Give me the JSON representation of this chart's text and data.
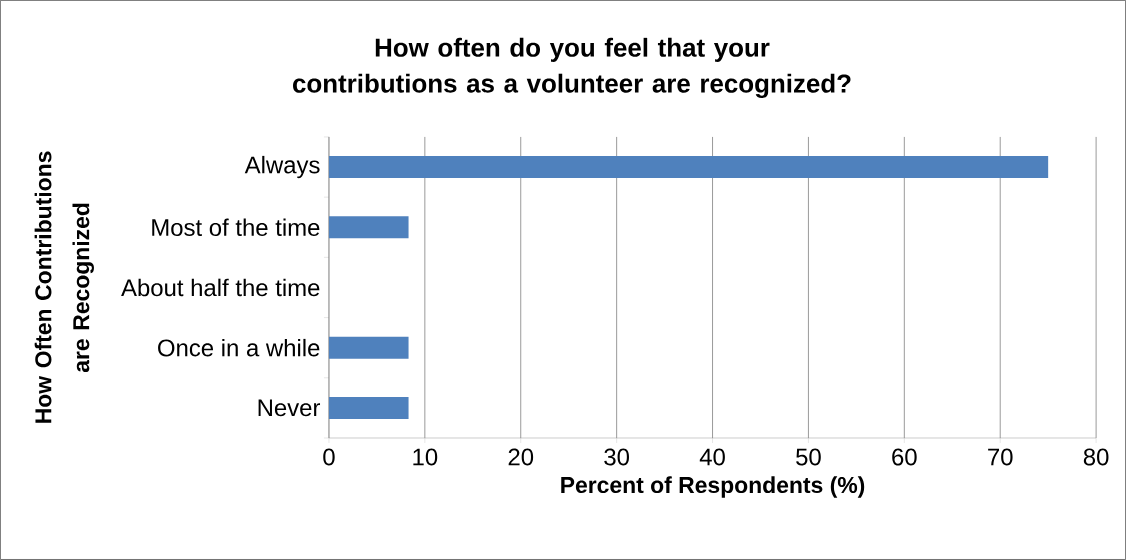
{
  "chart_data": {
    "type": "bar",
    "orientation": "horizontal",
    "title": "How often do you feel that your contributions as a volunteer are recognized?",
    "xlabel": "Percent of Respondents (%)",
    "ylabel": "How Often Contributions are Recognized",
    "categories": [
      "Always",
      "Most of the time",
      "About half the time",
      "Once in a while",
      "Never"
    ],
    "values": [
      75,
      8.3,
      0,
      8.3,
      8.3
    ],
    "color": "#4f81bd",
    "xlim": [
      0,
      80
    ],
    "xticks": [
      0,
      10,
      20,
      30,
      40,
      50,
      60,
      70,
      80
    ],
    "grid": "x"
  }
}
